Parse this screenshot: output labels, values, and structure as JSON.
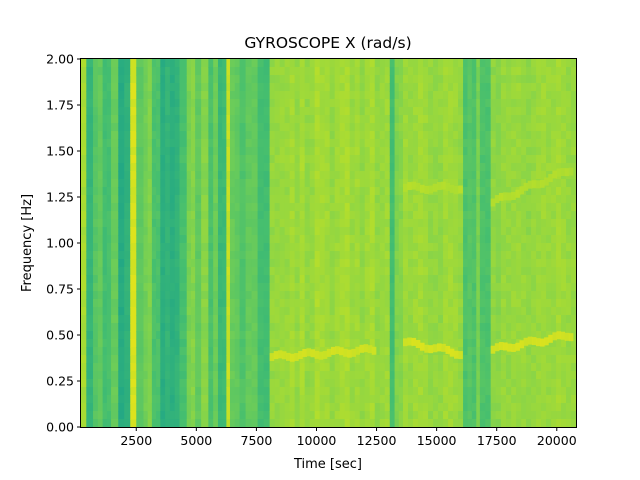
{
  "chart_data": {
    "type": "heatmap",
    "title": "GYROSCOPE X (rad/s)",
    "xlabel": "Time [sec]",
    "ylabel": "Frequency [Hz]",
    "xlim": [
      200,
      20800
    ],
    "ylim": [
      0,
      2.0
    ],
    "x_ticks": [
      2500,
      5000,
      7500,
      10000,
      12500,
      15000,
      17500,
      20000
    ],
    "y_ticks": [
      0.0,
      0.25,
      0.5,
      0.75,
      1.0,
      1.25,
      1.5,
      1.75,
      2.0
    ],
    "x_tick_labels": [
      "2500",
      "5000",
      "7500",
      "10000",
      "12500",
      "15000",
      "17500",
      "20000"
    ],
    "y_tick_labels": [
      "0.00",
      "0.25",
      "0.50",
      "0.75",
      "1.00",
      "1.25",
      "1.50",
      "1.75",
      "2.00"
    ],
    "grid": false,
    "colormap": "viridis",
    "color_range": [
      0.55,
      1.0
    ],
    "segments": [
      {
        "t0": 200,
        "t1": 420,
        "intensity": 0.93
      },
      {
        "t0": 420,
        "t1": 700,
        "intensity": 0.72
      },
      {
        "t0": 700,
        "t1": 1100,
        "intensity": 0.8
      },
      {
        "t0": 1100,
        "t1": 1450,
        "intensity": 0.74
      },
      {
        "t0": 1450,
        "t1": 1750,
        "intensity": 0.82
      },
      {
        "t0": 1750,
        "t1": 2250,
        "intensity": 0.68
      },
      {
        "t0": 2250,
        "t1": 2500,
        "intensity": 0.97
      },
      {
        "t0": 2500,
        "t1": 2800,
        "intensity": 0.79
      },
      {
        "t0": 2800,
        "t1": 3150,
        "intensity": 0.85
      },
      {
        "t0": 3150,
        "t1": 3500,
        "intensity": 0.75
      },
      {
        "t0": 3500,
        "t1": 4300,
        "intensity": 0.69
      },
      {
        "t0": 4300,
        "t1": 4600,
        "intensity": 0.76
      },
      {
        "t0": 4600,
        "t1": 4950,
        "intensity": 0.85
      },
      {
        "t0": 4950,
        "t1": 5200,
        "intensity": 0.79
      },
      {
        "t0": 5200,
        "t1": 5500,
        "intensity": 0.86
      },
      {
        "t0": 5500,
        "t1": 5700,
        "intensity": 0.77
      },
      {
        "t0": 5700,
        "t1": 5900,
        "intensity": 0.83
      },
      {
        "t0": 5900,
        "t1": 6250,
        "intensity": 0.74
      },
      {
        "t0": 6250,
        "t1": 6400,
        "intensity": 0.96
      },
      {
        "t0": 6400,
        "t1": 6800,
        "intensity": 0.8
      },
      {
        "t0": 6800,
        "t1": 7050,
        "intensity": 0.76
      },
      {
        "t0": 7050,
        "t1": 7550,
        "intensity": 0.82
      },
      {
        "t0": 7550,
        "t1": 8050,
        "intensity": 0.74
      },
      {
        "t0": 8050,
        "t1": 13050,
        "intensity": 0.9
      },
      {
        "t0": 13050,
        "t1": 13250,
        "intensity": 0.75
      },
      {
        "t0": 13250,
        "t1": 13600,
        "intensity": 0.86
      },
      {
        "t0": 13600,
        "t1": 16100,
        "intensity": 0.9
      },
      {
        "t0": 16100,
        "t1": 16650,
        "intensity": 0.78
      },
      {
        "t0": 16650,
        "t1": 16800,
        "intensity": 0.86
      },
      {
        "t0": 16800,
        "t1": 17250,
        "intensity": 0.76
      },
      {
        "t0": 17250,
        "t1": 18100,
        "intensity": 0.88
      },
      {
        "t0": 18100,
        "t1": 20800,
        "intensity": 0.89
      }
    ],
    "ridges": [
      {
        "t0": 8050,
        "t1": 12300,
        "freq_start": 0.38,
        "freq_end": 0.42,
        "intensity": 0.97
      },
      {
        "t0": 13600,
        "t1": 15900,
        "freq_start": 0.46,
        "freq_end": 0.4,
        "intensity": 0.98
      },
      {
        "t0": 17250,
        "t1": 20500,
        "freq_start": 0.42,
        "freq_end": 0.5,
        "intensity": 0.98
      },
      {
        "t0": 13600,
        "t1": 15900,
        "freq_start": 1.3,
        "freq_end": 1.3,
        "intensity": 0.93
      },
      {
        "t0": 17250,
        "t1": 20500,
        "freq_start": 1.22,
        "freq_end": 1.4,
        "intensity": 0.93
      }
    ]
  }
}
